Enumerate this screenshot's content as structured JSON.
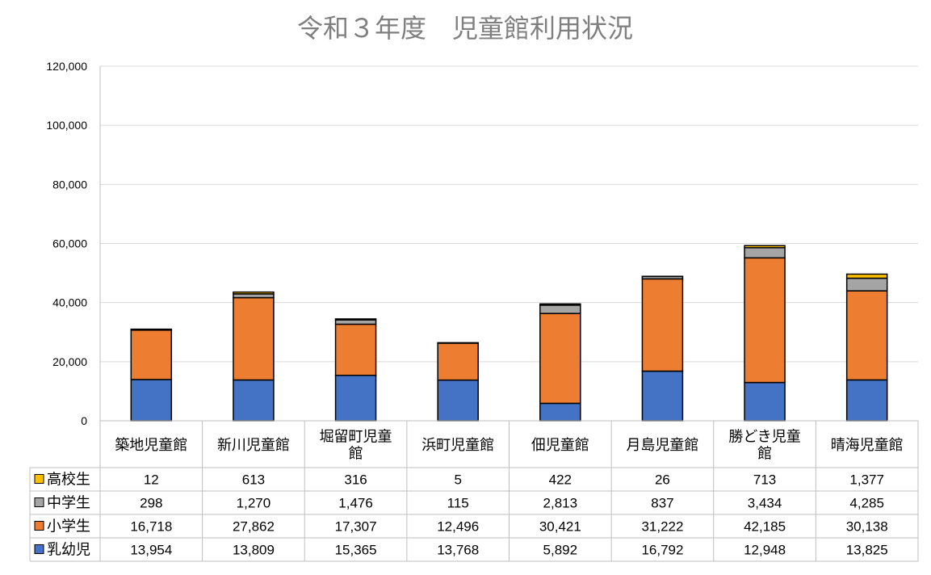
{
  "chart_data": {
    "type": "bar",
    "stacked": true,
    "title": "令和３年度　児童館利用状況",
    "xlabel": "",
    "ylabel": "",
    "ylim": [
      0,
      120000
    ],
    "yticks": [
      0,
      20000,
      40000,
      60000,
      80000,
      100000,
      120000
    ],
    "ytick_labels": [
      "0",
      "20,000",
      "40,000",
      "60,000",
      "80,000",
      "100,000",
      "120,000"
    ],
    "grid": true,
    "legend": "data-table-left",
    "categories": [
      [
        "築地児童館"
      ],
      [
        "新川児童館"
      ],
      [
        "堀留町児童",
        "館"
      ],
      [
        "浜町児童館"
      ],
      [
        "佃児童館"
      ],
      [
        "月島児童館"
      ],
      [
        "勝どき児童",
        "館"
      ],
      [
        "晴海児童館"
      ]
    ],
    "series": [
      {
        "name": "乳幼児",
        "color": "#4472c4",
        "values": [
          13954,
          13809,
          15365,
          13768,
          5892,
          16792,
          12948,
          13825
        ],
        "labels": [
          "13,954",
          "13,809",
          "15,365",
          "13,768",
          "5,892",
          "16,792",
          "12,948",
          "13,825"
        ]
      },
      {
        "name": "小学生",
        "color": "#ed7d31",
        "values": [
          16718,
          27862,
          17307,
          12496,
          30421,
          31222,
          42185,
          30138
        ],
        "labels": [
          "16,718",
          "27,862",
          "17,307",
          "12,496",
          "30,421",
          "31,222",
          "42,185",
          "30,138"
        ]
      },
      {
        "name": "中学生",
        "color": "#a5a5a5",
        "values": [
          298,
          1270,
          1476,
          115,
          2813,
          837,
          3434,
          4285
        ],
        "labels": [
          "298",
          "1,270",
          "1,476",
          "115",
          "2,813",
          "837",
          "3,434",
          "4,285"
        ]
      },
      {
        "name": "高校生",
        "color": "#ffc000",
        "values": [
          12,
          613,
          316,
          5,
          422,
          26,
          713,
          1377
        ],
        "labels": [
          "12",
          "613",
          "316",
          "5",
          "422",
          "26",
          "713",
          "1,377"
        ]
      }
    ],
    "table_row_order": [
      3,
      2,
      1,
      0
    ]
  }
}
